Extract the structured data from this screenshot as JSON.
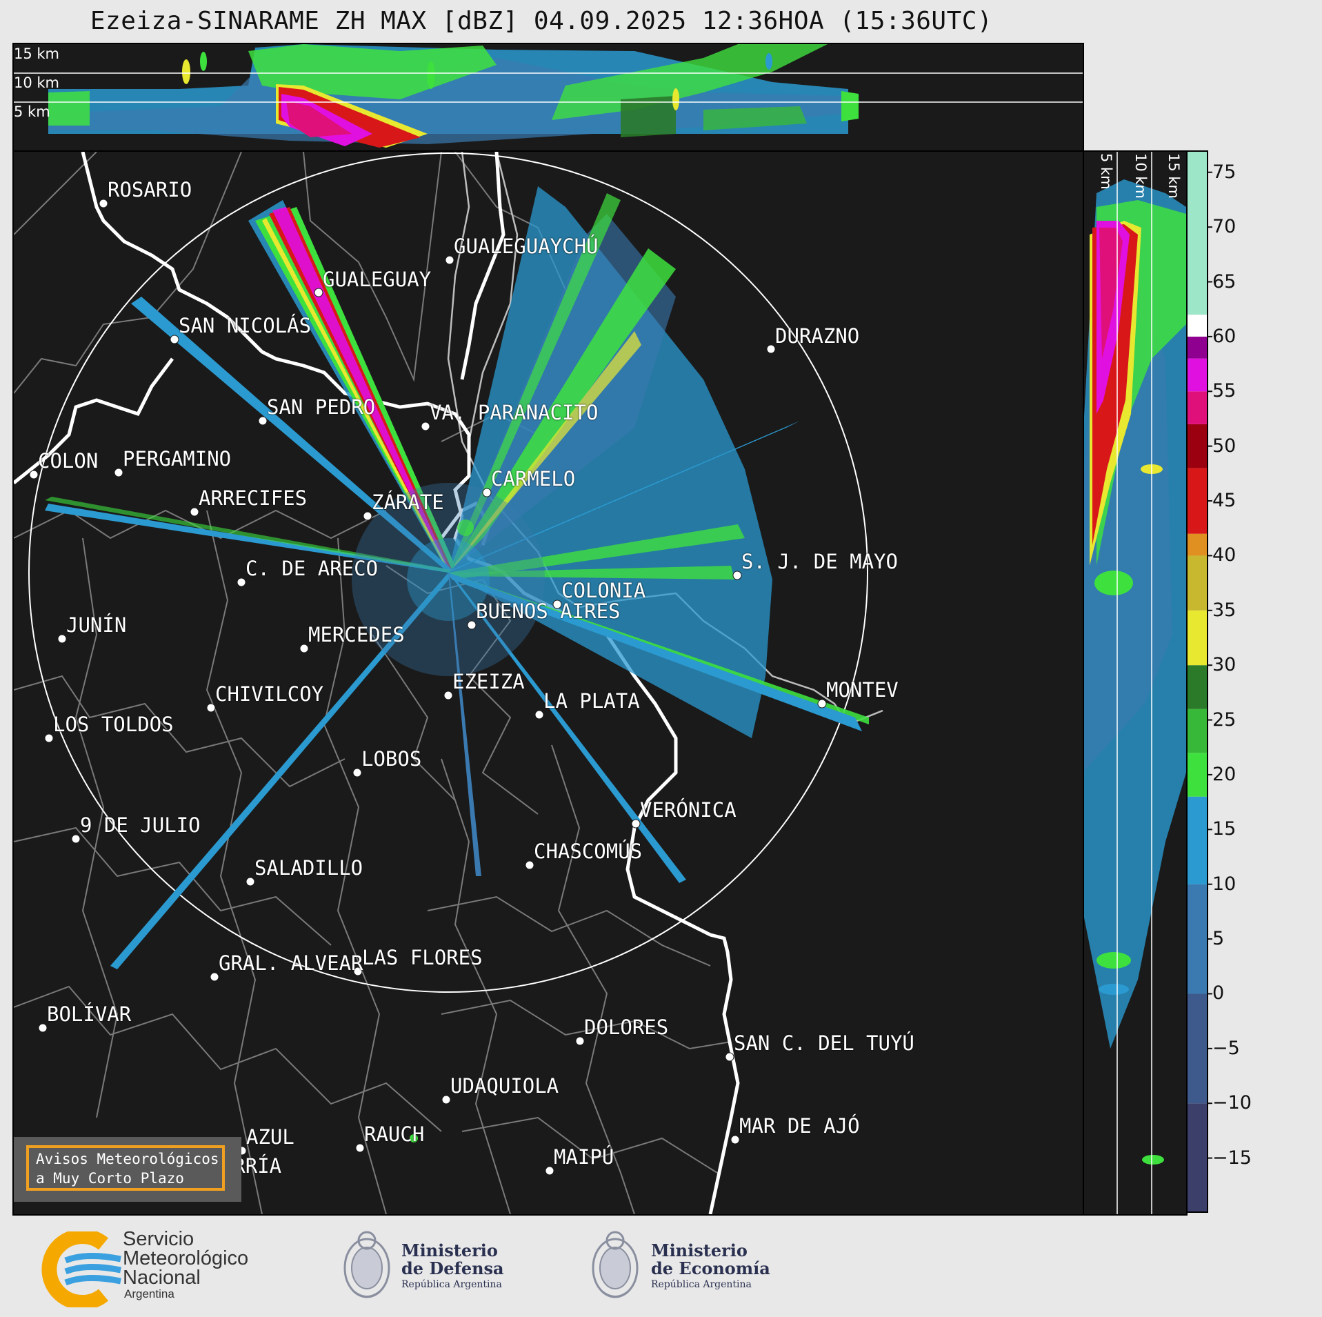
{
  "title": "Ezeiza-SINARAME ZH MAX [dBZ] 04.09.2025 12:36HOA (15:36UTC)",
  "top_panel": {
    "levels": [
      "15 km",
      "10 km",
      "5 km"
    ]
  },
  "right_panel": {
    "levels": [
      "5 km",
      "10 km",
      "15 km"
    ]
  },
  "colorbar": {
    "unit": "dBZ",
    "ticks": [
      "75",
      "70",
      "65",
      "60",
      "55",
      "50",
      "45",
      "40",
      "35",
      "30",
      "25",
      "20",
      "15",
      "10",
      "5",
      "0",
      "−5",
      "−10",
      "−15"
    ],
    "tick_values": [
      75,
      70,
      65,
      60,
      55,
      50,
      45,
      40,
      35,
      30,
      25,
      20,
      15,
      10,
      5,
      0,
      -5,
      -10,
      -15
    ],
    "range": [
      -20,
      77
    ],
    "bands": [
      {
        "from": -20,
        "to": -10,
        "color": "#3b3f6a"
      },
      {
        "from": -10,
        "to": 0,
        "color": "#3e5a8c"
      },
      {
        "from": 0,
        "to": 10,
        "color": "#3a7ab0"
      },
      {
        "from": 10,
        "to": 18,
        "color": "#2b9ad0"
      },
      {
        "from": 18,
        "to": 22,
        "color": "#3ee03e"
      },
      {
        "from": 22,
        "to": 26,
        "color": "#38b838"
      },
      {
        "from": 26,
        "to": 30,
        "color": "#2a7a2a"
      },
      {
        "from": 30,
        "to": 35,
        "color": "#e8e830"
      },
      {
        "from": 35,
        "to": 40,
        "color": "#c8b830"
      },
      {
        "from": 40,
        "to": 42,
        "color": "#e09020"
      },
      {
        "from": 42,
        "to": 48,
        "color": "#d81818"
      },
      {
        "from": 48,
        "to": 52,
        "color": "#9a0010"
      },
      {
        "from": 52,
        "to": 55,
        "color": "#e0107a"
      },
      {
        "from": 55,
        "to": 58,
        "color": "#e010e0"
      },
      {
        "from": 58,
        "to": 60,
        "color": "#900090"
      },
      {
        "from": 60,
        "to": 62,
        "color": "#ffffff"
      },
      {
        "from": 62,
        "to": 77,
        "color": "#9ee6c8"
      }
    ]
  },
  "cities": [
    {
      "name": "ROSARIO"
    },
    {
      "name": "GUALEGUAYCHÚ"
    },
    {
      "name": "GUALEGUAY"
    },
    {
      "name": "SAN NICOLÁS"
    },
    {
      "name": "DURAZNO"
    },
    {
      "name": "SAN PEDRO"
    },
    {
      "name": "VA. PARANACITO"
    },
    {
      "name": "COLON"
    },
    {
      "name": "PERGAMINO"
    },
    {
      "name": "CARMELO"
    },
    {
      "name": "ARRECIFES"
    },
    {
      "name": "ZÁRATE"
    },
    {
      "name": "C. DE ARECO"
    },
    {
      "name": "S. J. DE MAYO"
    },
    {
      "name": "COLONIA"
    },
    {
      "name": "JUNÍN"
    },
    {
      "name": "BUENOS AIRES"
    },
    {
      "name": "MERCEDES"
    },
    {
      "name": "EZEIZA"
    },
    {
      "name": "MONTEV"
    },
    {
      "name": "CHIVILCOY"
    },
    {
      "name": "LA PLATA"
    },
    {
      "name": "LOS TOLDOS"
    },
    {
      "name": "LOBOS"
    },
    {
      "name": "VERÓNICA"
    },
    {
      "name": "9 DE JULIO"
    },
    {
      "name": "CHASCOMÚS"
    },
    {
      "name": "SALADILLO"
    },
    {
      "name": "GRAL. ALVEAR"
    },
    {
      "name": "LAS FLORES"
    },
    {
      "name": "BOLÍVAR"
    },
    {
      "name": "DOLORES"
    },
    {
      "name": "SAN C. DEL TUYÚ"
    },
    {
      "name": "UDAQUIOLA"
    },
    {
      "name": "MAR DE AJÓ"
    },
    {
      "name": "AZUL"
    },
    {
      "name": "RAUCH"
    },
    {
      "name": "OLAVARRÍA"
    },
    {
      "name": "MAIPÚ"
    }
  ],
  "avisos": {
    "line1": "Avisos Meteorológicos",
    "line2": "a Muy Corto Plazo"
  },
  "footer": {
    "smn": {
      "line1": "Servicio",
      "line2": "Meteorológico",
      "line3": "Nacional",
      "line4": "Argentina"
    },
    "defensa": {
      "line1": "Ministerio",
      "line2": "de Defensa",
      "line3": "República Argentina"
    },
    "economia": {
      "line1": "Ministerio",
      "line2": "de Economía",
      "line3": "República Argentina"
    }
  }
}
